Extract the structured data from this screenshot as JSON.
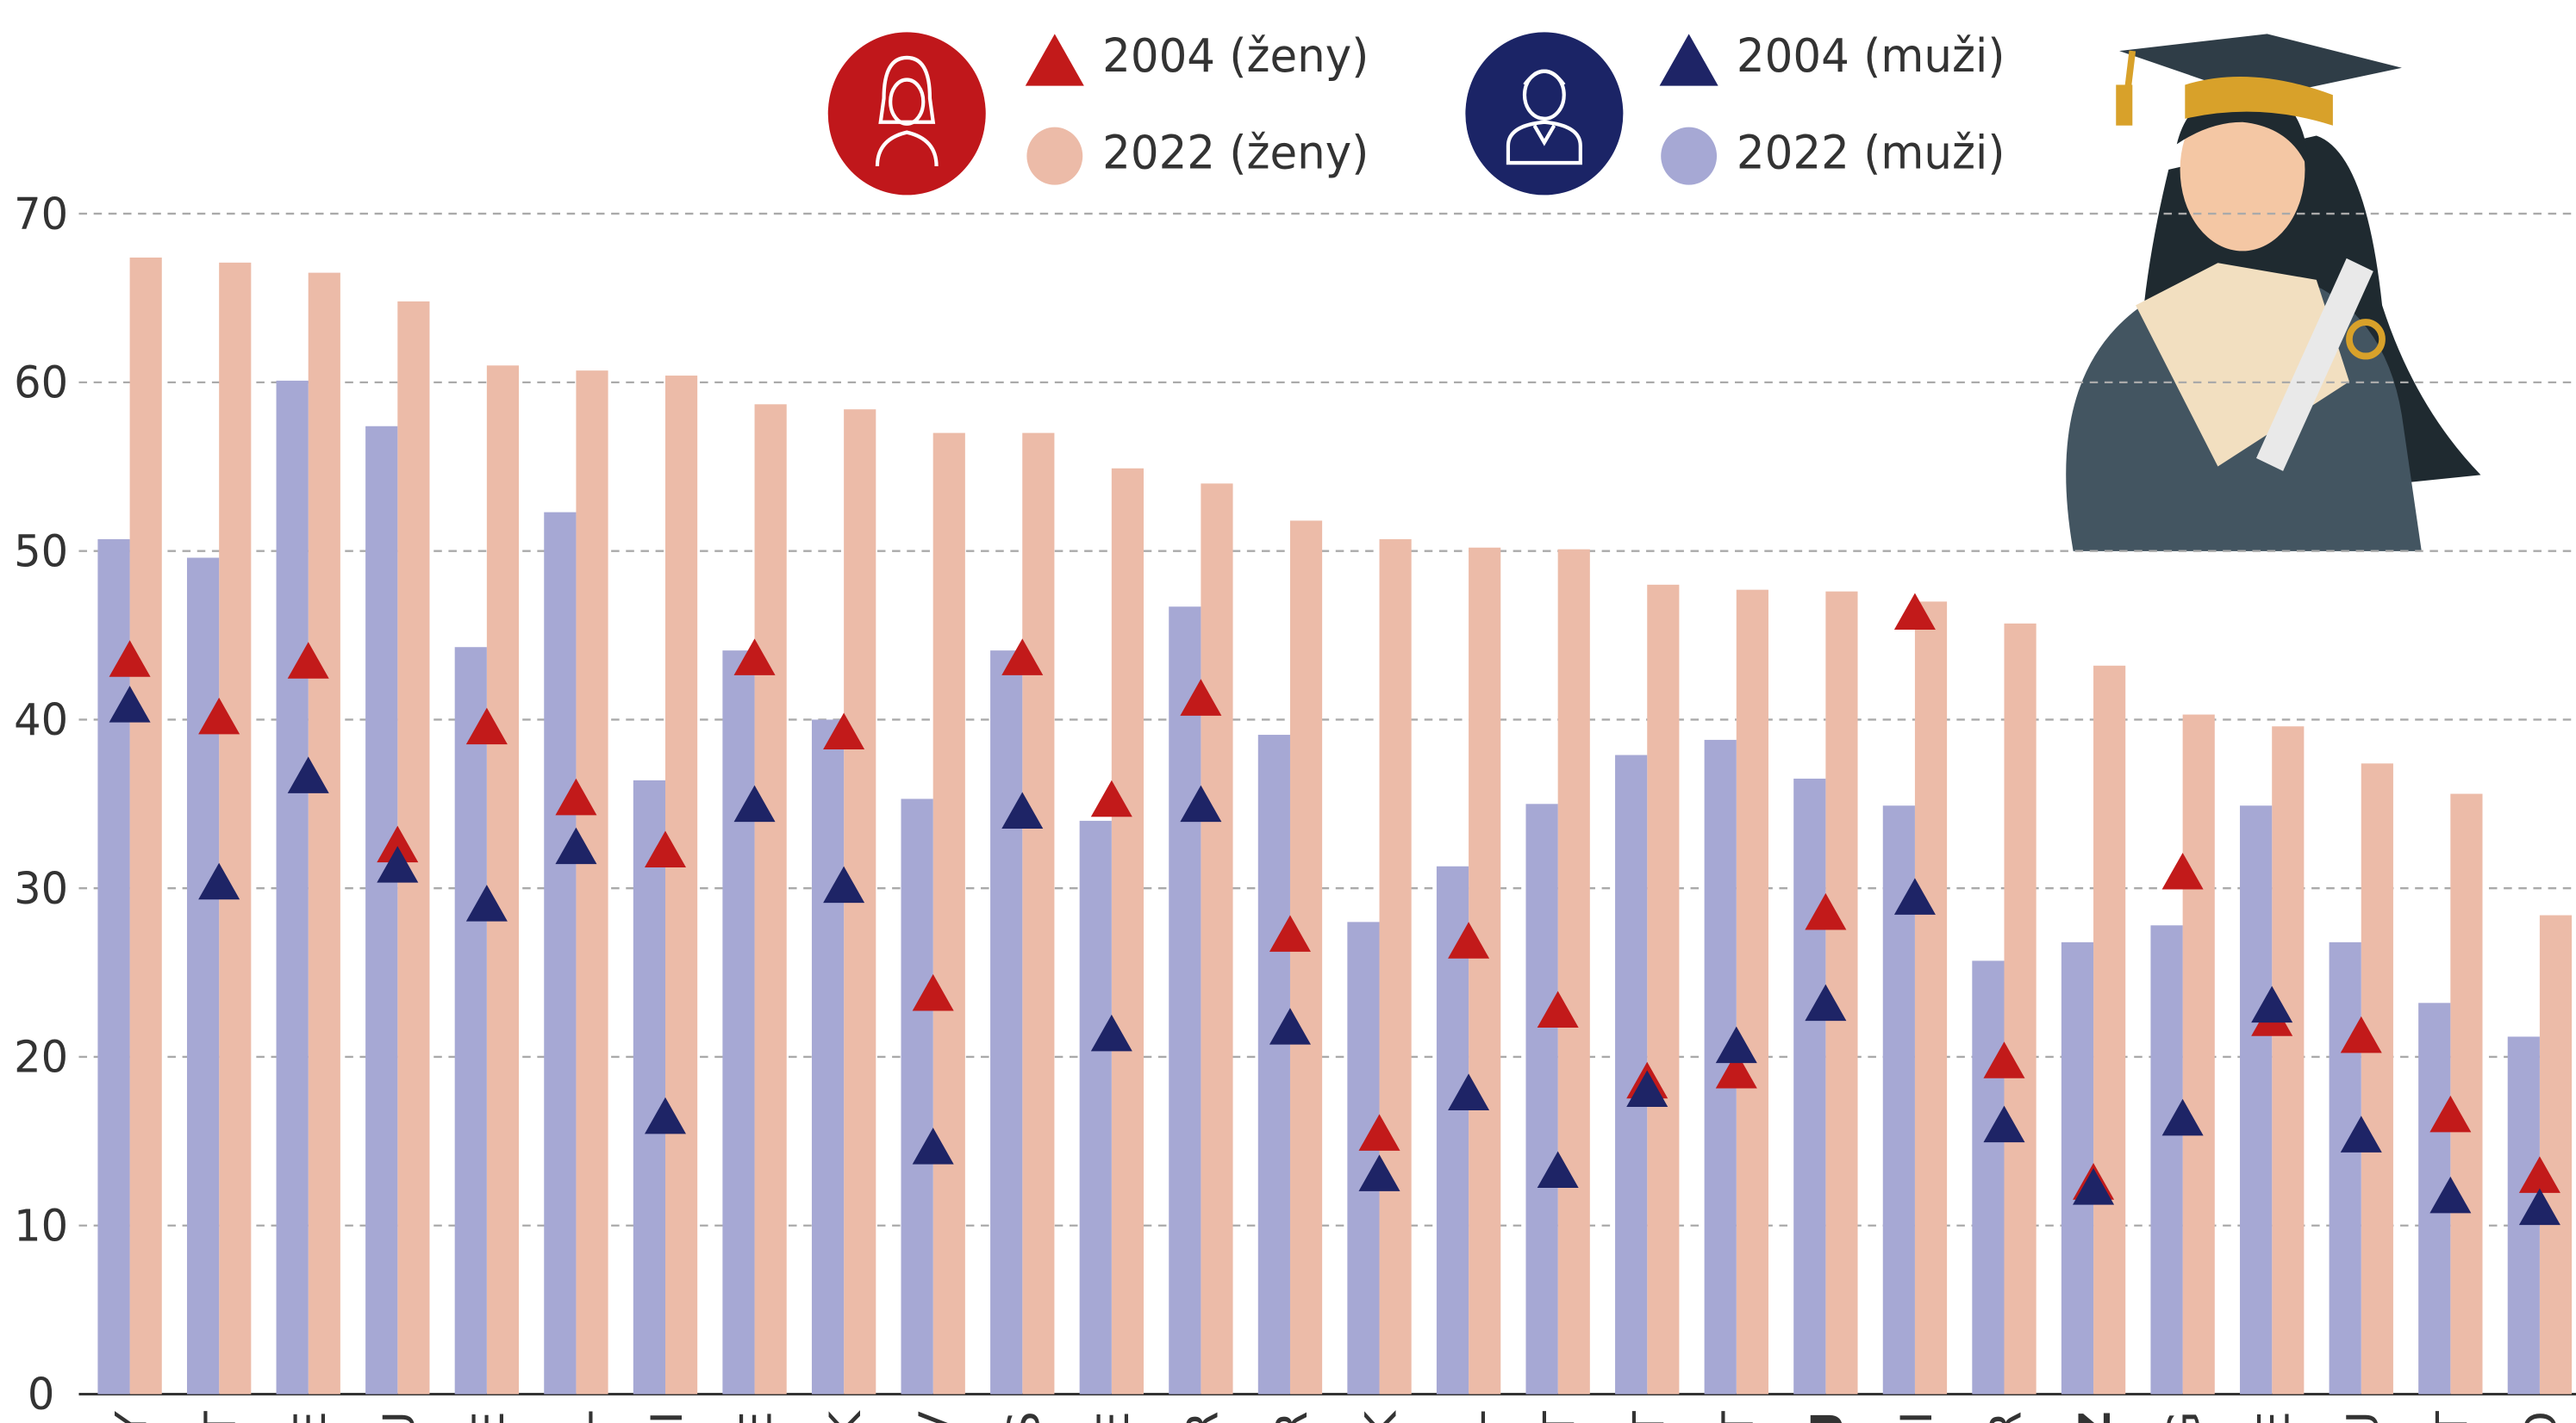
{
  "chart_data": {
    "type": "bar",
    "categories": [
      "CY",
      "LT",
      "IE",
      "LU",
      "SE",
      "NL",
      "SI",
      "BE",
      "DK",
      "LV",
      "ES",
      "EE",
      "FR",
      "GR",
      "SK",
      "PL",
      "PT",
      "MT",
      "AT",
      "EU",
      "FI",
      "HR",
      "CZ",
      "BG",
      "GE",
      "HU",
      "IT",
      "RO"
    ],
    "series": [
      {
        "name": "2004 (ženy)",
        "color": "#c21a1a",
        "marker": "triangle",
        "values": [
          43.5,
          40.1,
          43.4,
          32.5,
          39.5,
          35.3,
          32.2,
          43.6,
          39.2,
          23.7,
          43.6,
          35.2,
          41.2,
          27.2,
          15.4,
          26.8,
          22.7,
          18.5,
          19.1,
          28.5,
          46.3,
          19.7,
          12.5,
          30.9,
          22.2,
          21.2,
          16.5,
          12.9
        ]
      },
      {
        "name": "2022 (ženy)",
        "color": "#ecbba8",
        "marker": "bar",
        "values": [
          67.4,
          67.1,
          66.5,
          64.8,
          61.0,
          60.7,
          60.4,
          58.7,
          58.4,
          57.0,
          57.0,
          54.9,
          54.0,
          51.8,
          50.7,
          50.2,
          50.1,
          48.0,
          47.7,
          47.6,
          47.0,
          45.7,
          43.2,
          40.3,
          39.6,
          37.4,
          35.6,
          28.4
        ]
      },
      {
        "name": "2004 (muži)",
        "color": "#1e2466",
        "marker": "triangle",
        "values": [
          40.8,
          30.3,
          36.6,
          31.3,
          29.0,
          32.4,
          16.4,
          34.9,
          30.1,
          14.6,
          34.5,
          21.3,
          34.9,
          21.7,
          13.0,
          17.8,
          13.2,
          18.0,
          20.6,
          23.1,
          29.4,
          15.9,
          12.2,
          16.3,
          23.0,
          15.3,
          11.7,
          11.0
        ]
      },
      {
        "name": "2022 (muži)",
        "color": "#a6a8d4",
        "marker": "bar",
        "values": [
          50.7,
          49.6,
          60.1,
          57.4,
          44.3,
          52.3,
          36.4,
          44.1,
          40.0,
          35.3,
          44.1,
          34.0,
          46.7,
          39.1,
          28.0,
          31.3,
          35.0,
          37.9,
          38.8,
          36.5,
          34.9,
          25.7,
          26.8,
          27.8,
          34.9,
          26.8,
          23.2,
          21.2
        ]
      }
    ],
    "ylim": [
      0,
      70
    ],
    "yticks": [
      0,
      10,
      20,
      30,
      40,
      50,
      60,
      70
    ],
    "grid": true
  }
}
